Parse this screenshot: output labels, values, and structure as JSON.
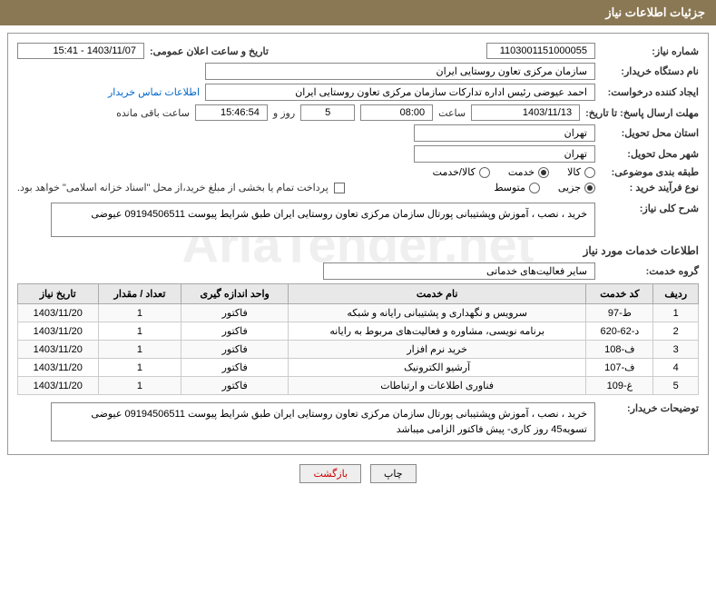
{
  "header": {
    "title": "جزئیات اطلاعات نیاز"
  },
  "fields": {
    "need_number_label": "شماره نیاز:",
    "need_number": "1103001151000055",
    "announce_date_label": "تاریخ و ساعت اعلان عمومی:",
    "announce_date": "1403/11/07 - 15:41",
    "buyer_org_label": "نام دستگاه خریدار:",
    "buyer_org": "سازمان مرکزی تعاون روستایی ایران",
    "requester_label": "ایجاد کننده درخواست:",
    "requester": "احمد عیوضی رئیس اداره تدارکات سازمان مرکزی تعاون روستایی ایران",
    "contact_link": "اطلاعات تماس خریدار",
    "deadline_label": "مهلت ارسال پاسخ: تا تاریخ:",
    "deadline_date": "1403/11/13",
    "time_label": "ساعت",
    "deadline_time": "08:00",
    "days_value": "5",
    "days_and": "روز و",
    "remaining_time": "15:46:54",
    "remaining_label": "ساعت باقی مانده",
    "province_label": "استان محل تحویل:",
    "province": "تهران",
    "city_label": "شهر محل تحویل:",
    "city": "تهران",
    "subject_class_label": "طبقه بندی موضوعی:",
    "radio_kala": "کالا",
    "radio_khedmat": "خدمت",
    "radio_kala_khedmat": "کالا/خدمت",
    "process_label": "نوع فرآیند خرید :",
    "radio_jozi": "جزیی",
    "radio_motvaset": "متوسط",
    "payment_note": "پرداخت تمام یا بخشی از مبلغ خرید،از محل \"اسناد خزانه اسلامی\" خواهد بود.",
    "need_desc_label": "شرح کلی نیاز:",
    "need_desc": "خرید ، نصب ، آموزش وپشتیبانی پورتال سازمان مرکزی تعاون روستایی ایران طبق شرایط پیوست 09194506511 عیوضی",
    "services_info_title": "اطلاعات خدمات مورد نیاز",
    "service_group_label": "گروه خدمت:",
    "service_group": "سایر فعالیت‌های خدماتی",
    "buyer_notes_label": "توضیحات خریدار:",
    "buyer_notes": "خرید ، نصب ، آموزش وپشتیبانی پورتال سازمان مرکزی تعاون روستایی ایران طبق شرایط پیوست 09194506511 عیوضی تسویه45 روز کاری- پیش فاکتور الزامی میباشد"
  },
  "table": {
    "headers": {
      "row": "ردیف",
      "code": "کد خدمت",
      "name": "نام خدمت",
      "unit": "واحد اندازه گیری",
      "qty": "تعداد / مقدار",
      "date": "تاریخ نیاز"
    },
    "rows": [
      {
        "row": "1",
        "code": "ط-97",
        "name": "سرویس و نگهداری و پشتیبانی رایانه و شبکه",
        "unit": "فاکتور",
        "qty": "1",
        "date": "1403/11/20"
      },
      {
        "row": "2",
        "code": "د-62-620",
        "name": "برنامه نویسی، مشاوره و فعالیت‌های مربوط به رایانه",
        "unit": "فاکتور",
        "qty": "1",
        "date": "1403/11/20"
      },
      {
        "row": "3",
        "code": "ف-108",
        "name": "خرید نرم افزار",
        "unit": "فاکتور",
        "qty": "1",
        "date": "1403/11/20"
      },
      {
        "row": "4",
        "code": "ف-107",
        "name": "آرشیو الکترونیک",
        "unit": "فاکتور",
        "qty": "1",
        "date": "1403/11/20"
      },
      {
        "row": "5",
        "code": "غ-109",
        "name": "فناوری اطلاعات و ارتباطات",
        "unit": "فاکتور",
        "qty": "1",
        "date": "1403/11/20"
      }
    ]
  },
  "buttons": {
    "print": "چاپ",
    "back": "بازگشت"
  },
  "watermark": "AriaTender.net",
  "colors": {
    "header_bg": "#8a7753",
    "border": "#888888",
    "th_bg": "#e8e8e8",
    "link": "#0066cc"
  }
}
